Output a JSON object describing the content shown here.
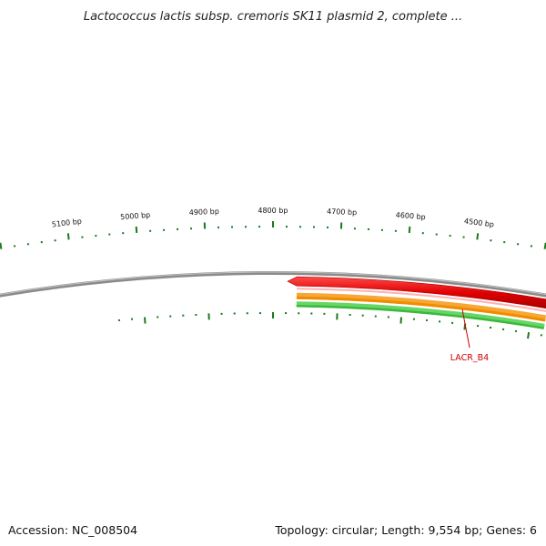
{
  "title": "Lactococcus lactis subsp. cremoris SK11 plasmid 2, complete ...",
  "footer": {
    "accession": "Accession: NC_008504",
    "summary": "Topology: circular; Length: 9,554 bp; Genes: 6"
  },
  "outer_scale": {
    "labels": [
      "5100 bp",
      "5000 bp",
      "4900 bp",
      "4800 bp",
      "4700 bp",
      "4600 bp",
      "4500 bp"
    ]
  },
  "genes": [
    {
      "name": "LACR_B4",
      "strand": "plus",
      "color": "#ee0000"
    }
  ],
  "colors": {
    "backbone": "#8a8a8a",
    "gene_forward": "#ee0000",
    "orf_track": "#f08c00",
    "green_track": "#3cb83c",
    "tick": "#1a7a1a"
  }
}
